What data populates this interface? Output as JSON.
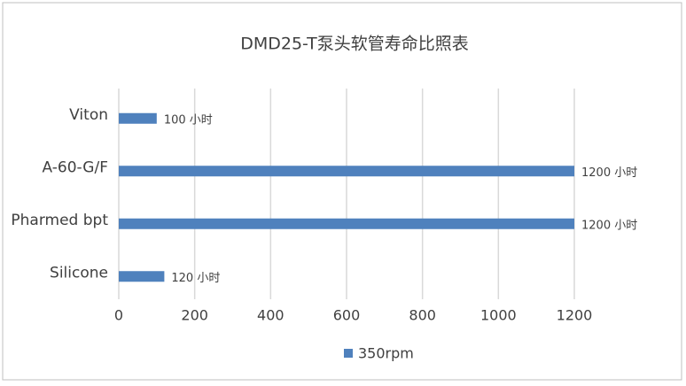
{
  "chart_data": {
    "type": "hbar",
    "title": "DMD25-T泵头软管寿命比照表",
    "categories": [
      "Viton",
      "A-60-G/F",
      "Pharmed bpt",
      "Silicone"
    ],
    "series": [
      {
        "name": "350rpm",
        "color": "#4f81bd",
        "values": [
          100,
          1200,
          1200,
          120
        ],
        "value_labels": [
          "100 小时",
          "1200 小时",
          "1200 小时",
          "120 小时"
        ]
      }
    ],
    "xlim": [
      0,
      1200
    ],
    "xticks": [
      0,
      200,
      400,
      600,
      800,
      1000,
      1200
    ],
    "grid": true,
    "legend": "bottom"
  }
}
